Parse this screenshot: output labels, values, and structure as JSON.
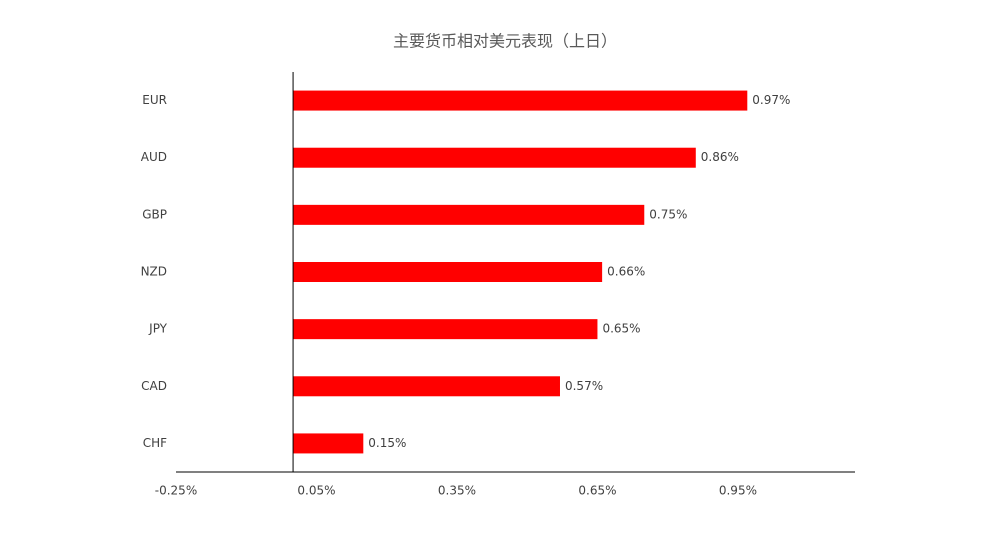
{
  "chart_data": {
    "type": "hbar",
    "title": "主要货币相对美元表现（上日）",
    "categories": [
      "EUR",
      "AUD",
      "GBP",
      "NZD",
      "JPY",
      "CAD",
      "CHF"
    ],
    "values": [
      0.97,
      0.86,
      0.75,
      0.66,
      0.65,
      0.57,
      0.15
    ],
    "value_labels": [
      "0.97%",
      "0.86%",
      "0.75%",
      "0.66%",
      "0.65%",
      "0.57%",
      "0.15%"
    ],
    "color": "#ff0000",
    "xlim": [
      -0.25,
      1.2
    ],
    "xticks": [
      {
        "value": -0.25,
        "label": "-0.25%"
      },
      {
        "value": 0.05,
        "label": "0.05%"
      },
      {
        "value": 0.35,
        "label": "0.35%"
      },
      {
        "value": 0.65,
        "label": "0.65%"
      },
      {
        "value": 0.95,
        "label": "0.95%"
      }
    ],
    "grid": false
  }
}
